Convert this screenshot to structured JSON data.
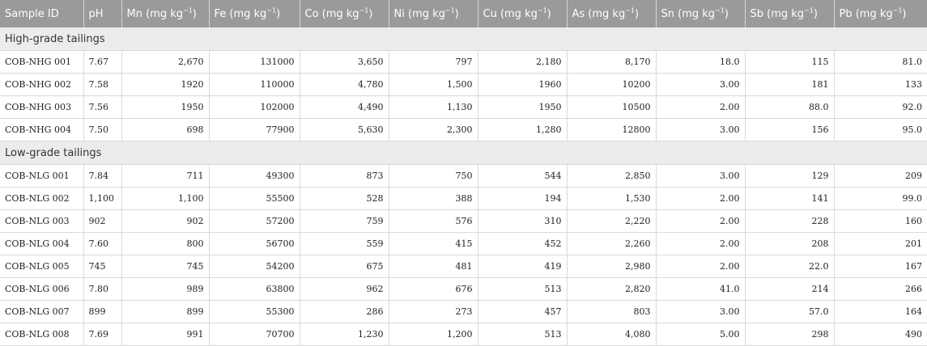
{
  "table": {
    "headers": [
      {
        "name": "Sample ID",
        "unit": ""
      },
      {
        "name": "pH",
        "unit": ""
      },
      {
        "name": "Mn (mg kg",
        "unit": "−1"
      },
      {
        "name": "Fe (mg kg",
        "unit": "−1"
      },
      {
        "name": "Co (mg kg",
        "unit": "−1"
      },
      {
        "name": "Ni (mg kg",
        "unit": "−1"
      },
      {
        "name": "Cu (mg kg",
        "unit": "−1"
      },
      {
        "name": "As (mg kg",
        "unit": "−1"
      },
      {
        "name": "Sn (mg kg",
        "unit": "−1"
      },
      {
        "name": "Sb (mg kg",
        "unit": "−1"
      },
      {
        "name": "Pb (mg kg",
        "unit": "−1"
      }
    ],
    "groups": [
      {
        "label": "High-grade tailings",
        "rows": [
          [
            "COB-NHG 001",
            "7.67",
            "2,670",
            "131000",
            "3,650",
            "797",
            "2,180",
            "8,170",
            "18.0",
            "115",
            "81.0"
          ],
          [
            "COB-NHG 002",
            "7.58",
            "1920",
            "110000",
            "4,780",
            "1,500",
            "1960",
            "10200",
            "3.00",
            "181",
            "133"
          ],
          [
            "COB-NHG 003",
            "7.56",
            "1950",
            "102000",
            "4,490",
            "1,130",
            "1950",
            "10500",
            "2.00",
            "88.0",
            "92.0"
          ],
          [
            "COB-NHG 004",
            "7.50",
            "698",
            "77900",
            "5,630",
            "2,300",
            "1,280",
            "12800",
            "3.00",
            "156",
            "95.0"
          ]
        ]
      },
      {
        "label": "Low-grade tailings",
        "rows": [
          [
            "COB-NLG 001",
            "7.84",
            "711",
            "49300",
            "873",
            "750",
            "544",
            "2,850",
            "3.00",
            "129",
            "209"
          ],
          [
            "COB-NLG 002",
            "1,100",
            "1,100",
            "55500",
            "528",
            "388",
            "194",
            "1,530",
            "2.00",
            "141",
            "99.0"
          ],
          [
            "COB-NLG 003",
            "902",
            "902",
            "57200",
            "759",
            "576",
            "310",
            "2,220",
            "2.00",
            "228",
            "160"
          ],
          [
            "COB-NLG 004",
            "7.60",
            "800",
            "56700",
            "559",
            "415",
            "452",
            "2,260",
            "2.00",
            "208",
            "201"
          ],
          [
            "COB-NLG 005",
            "745",
            "745",
            "54200",
            "675",
            "481",
            "419",
            "2,980",
            "2.00",
            "22.0",
            "167"
          ],
          [
            "COB-NLG 006",
            "7.80",
            "989",
            "63800",
            "962",
            "676",
            "513",
            "2,820",
            "41.0",
            "214",
            "266"
          ],
          [
            "COB-NLG 007",
            "899",
            "899",
            "55300",
            "286",
            "273",
            "457",
            "803",
            "3.00",
            "57.0",
            "164"
          ],
          [
            "COB-NLG 008",
            "7.69",
            "991",
            "70700",
            "1,230",
            "1,200",
            "513",
            "4,080",
            "5.00",
            "298",
            "490"
          ]
        ]
      }
    ]
  }
}
